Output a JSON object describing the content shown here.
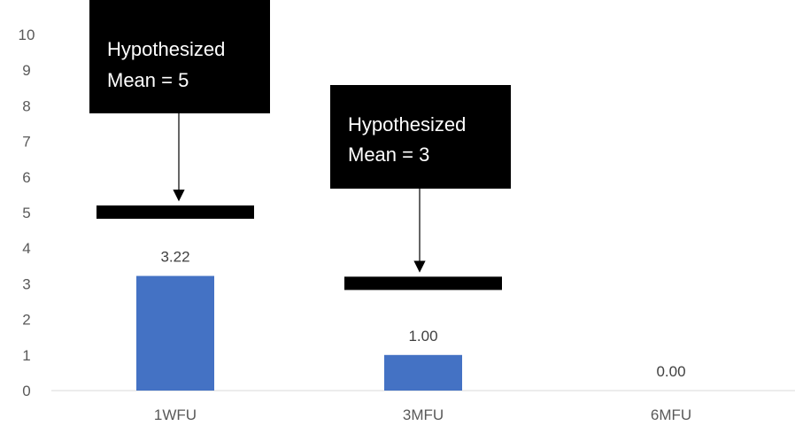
{
  "chart_data": {
    "type": "bar",
    "categories": [
      "1WFU",
      "3MFU",
      "6MFU"
    ],
    "values": [
      3.22,
      1.0,
      0.0
    ],
    "data_labels": [
      "3.22",
      "1.00",
      "0.00"
    ],
    "ylim": [
      0,
      10
    ],
    "yticks": [
      0,
      1,
      2,
      3,
      4,
      5,
      6,
      7,
      8,
      9,
      10
    ],
    "grid": false,
    "bar_color": "#4472C4",
    "hypothesized_means": [
      {
        "category": "1WFU",
        "value": 5,
        "label_line1": "Hypothesized",
        "label_line2": "Mean = 5"
      },
      {
        "category": "3MFU",
        "value": 3,
        "label_line1": "Hypothesized",
        "label_line2": "Mean = 3"
      }
    ]
  }
}
